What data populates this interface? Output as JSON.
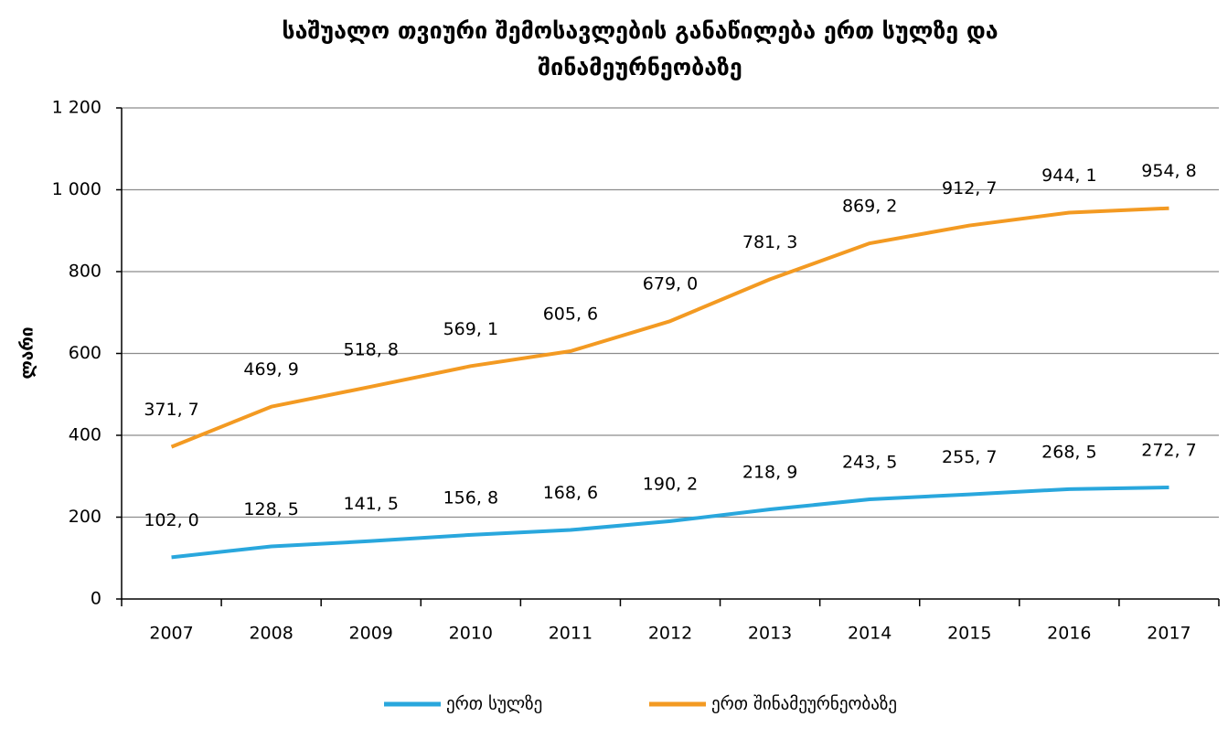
{
  "chart_data": {
    "type": "line",
    "title": "საშუალო თვიური შემოსავლების განაწილება ერთ სულზე და შინამეურნეობაზე",
    "y_label": "ლარი",
    "categories": [
      "2007",
      "2008",
      "2009",
      "2010",
      "2011",
      "2012",
      "2013",
      "2014",
      "2015",
      "2016",
      "2017"
    ],
    "series": [
      {
        "name": "ერთ სულზე",
        "color": "#29a7dd",
        "values": [
          102.0,
          128.5,
          141.5,
          156.8,
          168.6,
          190.2,
          218.9,
          243.5,
          255.7,
          268.5,
          272.7
        ],
        "value_labels": [
          "102, 0",
          "128, 5",
          "141, 5",
          "156, 8",
          "168, 6",
          "190, 2",
          "218, 9",
          "243, 5",
          "255, 7",
          "268, 5",
          "272, 7"
        ]
      },
      {
        "name": "ერთ შინამეურნეობაზე",
        "color": "#f39a22",
        "values": [
          371.7,
          469.9,
          518.8,
          569.1,
          605.6,
          679.0,
          781.3,
          869.2,
          912.7,
          944.1,
          954.8
        ],
        "value_labels": [
          "371, 7",
          "469, 9",
          "518, 8",
          "569, 1",
          "605, 6",
          "679, 0",
          "781, 3",
          "869, 2",
          "912, 7",
          "944, 1",
          "954, 8"
        ]
      }
    ],
    "ylim": [
      0,
      1200
    ],
    "yticks": [
      0,
      200,
      400,
      600,
      800,
      {
        "value": 1000,
        "label": "1 000"
      },
      {
        "value": 1200,
        "label": "1 200"
      }
    ],
    "grid": true,
    "legend": "bottom"
  }
}
